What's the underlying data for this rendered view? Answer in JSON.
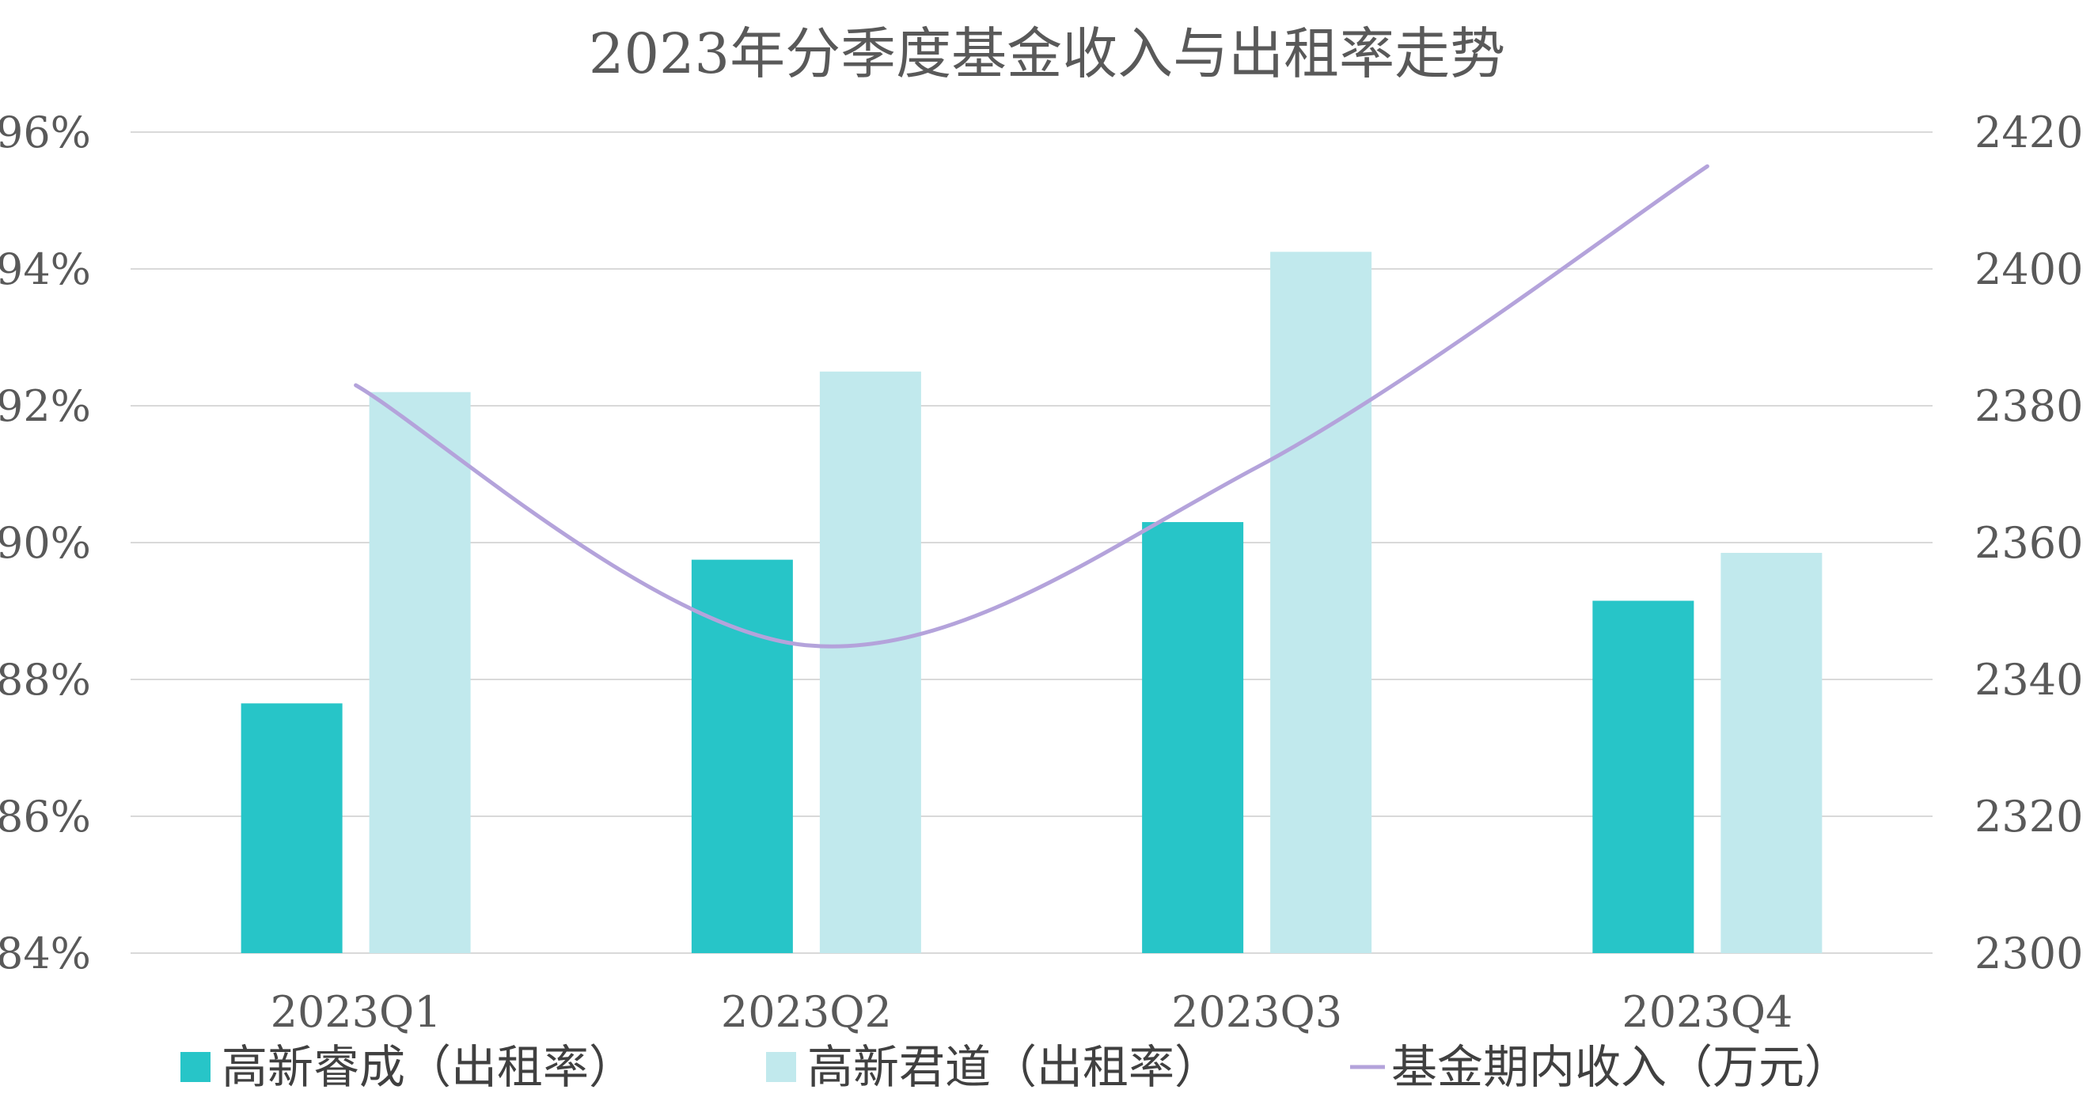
{
  "chart_data": {
    "type": "bar",
    "title": "2023年分季度基金收入与出租率走势",
    "categories": [
      "2023Q1",
      "2023Q2",
      "2023Q3",
      "2023Q4"
    ],
    "y_left": {
      "min": 84,
      "max": 96,
      "step": 2,
      "ticks": [
        "84%",
        "86%",
        "88%",
        "90%",
        "92%",
        "94%",
        "96%"
      ]
    },
    "y_right": {
      "min": 2300,
      "max": 2420,
      "step": 20,
      "ticks": [
        "2300",
        "2320",
        "2340",
        "2360",
        "2380",
        "2400",
        "2420"
      ]
    },
    "grid": true,
    "legend_position": "bottom",
    "series": [
      {
        "name": "高新睿成（出租率）",
        "type": "bar",
        "axis": "left",
        "color": "#27c5c8",
        "values": [
          87.65,
          89.75,
          90.3,
          89.15
        ]
      },
      {
        "name": "高新君道（出租率）",
        "type": "bar",
        "axis": "left",
        "color": "#c1e9ed",
        "values": [
          92.2,
          92.5,
          94.25,
          89.85
        ]
      },
      {
        "name": "基金期内收入（万元）",
        "type": "line",
        "axis": "right",
        "color": "#b4a3db",
        "values": [
          2383,
          2345,
          2371,
          2415
        ]
      }
    ]
  }
}
